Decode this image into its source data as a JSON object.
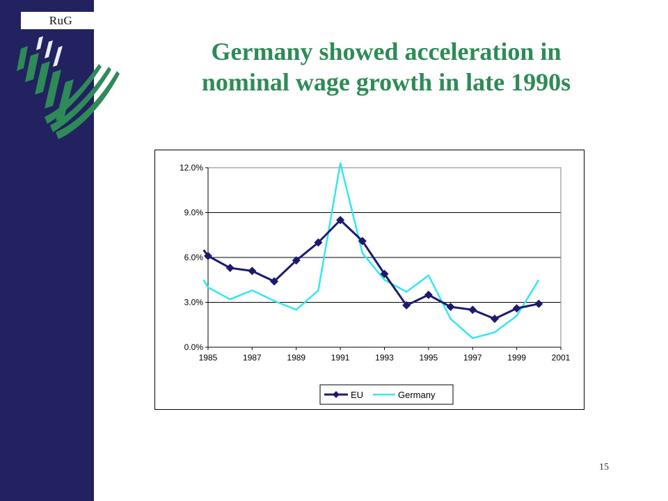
{
  "slide": {
    "logo_text": "RuG",
    "title_line1": "Germany showed acceleration in",
    "title_line2": "nominal wage growth in late 1990s",
    "page_number": "15"
  },
  "colors": {
    "sidebar": "#232260",
    "title": "#2e8b57",
    "eu_series": "#1b1a6e",
    "germany_series": "#33e6ef",
    "logo_leaf": "#2e8b57"
  },
  "chart_data": {
    "type": "line",
    "title": "",
    "xlabel": "",
    "ylabel": "",
    "xlim": [
      1985,
      2001
    ],
    "ylim": [
      0,
      12
    ],
    "x_ticks": [
      1985,
      1987,
      1989,
      1991,
      1993,
      1995,
      1997,
      1999,
      2001
    ],
    "y_ticks": [
      0,
      3,
      6,
      9,
      12
    ],
    "x_tick_labels": [
      "1985",
      "1987",
      "1989",
      "1991",
      "1993",
      "1995",
      "1997",
      "1999",
      "2001"
    ],
    "y_tick_labels": [
      "0.0%",
      "3.0%",
      "6.0%",
      "9.0%",
      "12.0%"
    ],
    "grid": "horizontal",
    "legend_position": "bottom",
    "series": [
      {
        "name": "EU",
        "marker": "diamond",
        "x": [
          1984.8,
          1985,
          1986,
          1987,
          1988,
          1989,
          1990,
          1991,
          1992,
          1993,
          1994,
          1995,
          1996,
          1997,
          1998,
          1999,
          2000
        ],
        "y": [
          6.5,
          6.1,
          5.3,
          5.1,
          4.4,
          5.8,
          7.0,
          8.5,
          7.1,
          4.9,
          2.8,
          3.5,
          2.7,
          2.5,
          1.9,
          2.6,
          2.9
        ]
      },
      {
        "name": "Germany",
        "marker": "none",
        "x": [
          1984.8,
          1985,
          1986,
          1987,
          1988,
          1989,
          1990,
          1991,
          1992,
          1993,
          1994,
          1995,
          1996,
          1997,
          1998,
          1999,
          2000
        ],
        "y": [
          4.5,
          4.0,
          3.2,
          3.8,
          3.1,
          2.5,
          3.8,
          12.3,
          6.3,
          4.5,
          3.7,
          4.8,
          1.9,
          0.6,
          1.0,
          2.1,
          4.5
        ]
      }
    ]
  }
}
